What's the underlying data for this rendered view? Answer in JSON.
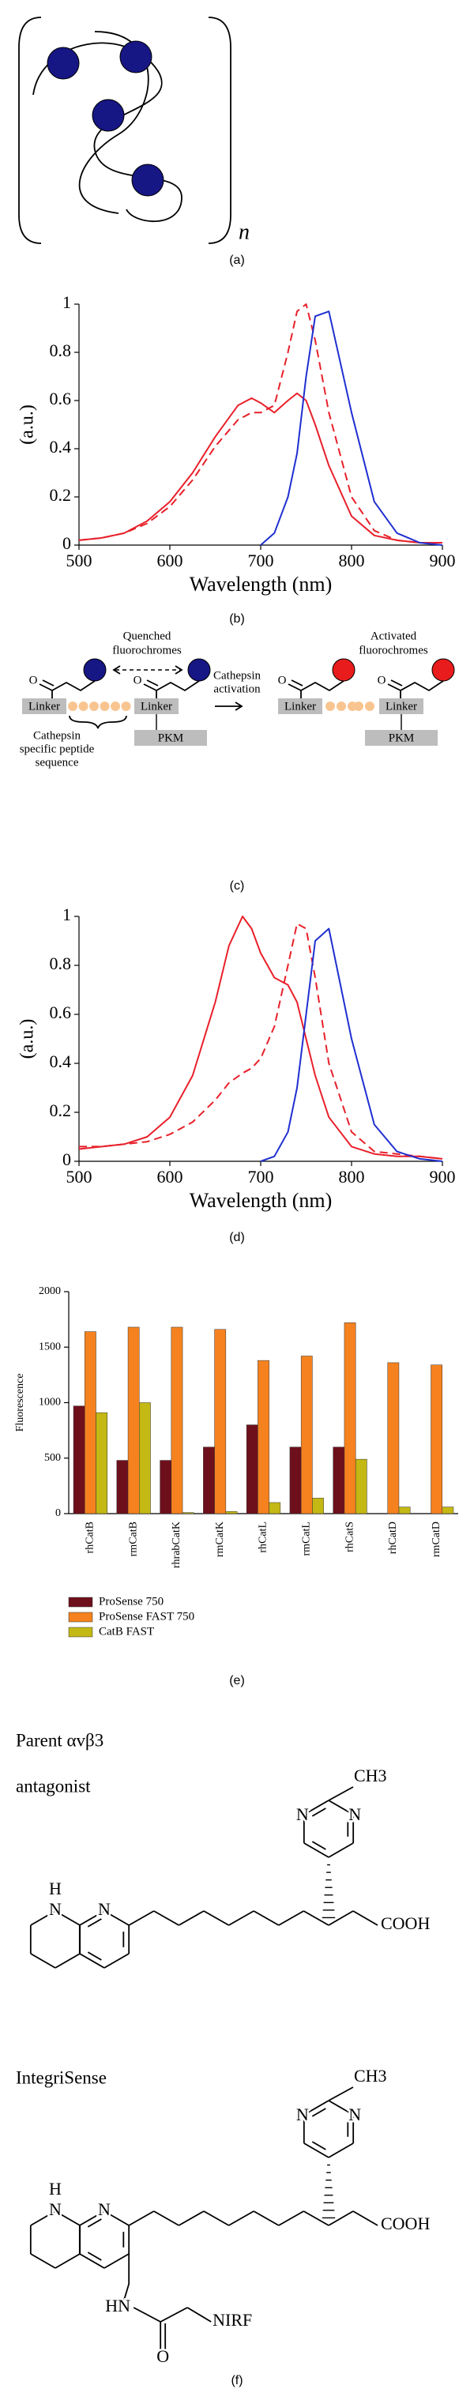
{
  "panel_labels": [
    "(a)",
    "(b)",
    "(c)",
    "(d)",
    "(e)",
    "(f)"
  ],
  "polymer": {
    "subscript": "n"
  },
  "cathepsin_diagram": {
    "quenched": [
      "Quenched",
      "fluorochromes"
    ],
    "activated": [
      "Activated",
      "fluorochromes"
    ],
    "activation": [
      "Cathepsin",
      "activation"
    ],
    "linker": [
      "Linker",
      "Linker",
      "Linker",
      "Linker"
    ],
    "pkm": [
      "PKM",
      "PKM"
    ],
    "peptide": [
      "Cathepsin",
      "specific peptide",
      "sequence"
    ]
  },
  "chart_data": [
    {
      "type": "line",
      "xlabel": "Wavelength (nm)",
      "ylabel": "(a.u.)",
      "xlim": [
        500,
        900
      ],
      "xticks": [
        500,
        600,
        700,
        800,
        900
      ],
      "ylim": [
        0,
        1
      ],
      "yticks": [
        0,
        0.2,
        0.4,
        0.6,
        0.8,
        1
      ],
      "x": [
        500,
        525,
        550,
        575,
        600,
        625,
        650,
        675,
        690,
        700,
        715,
        730,
        740,
        750,
        760,
        775,
        800,
        825,
        850,
        875,
        900
      ],
      "series": [
        {
          "color": "#e8202a",
          "dash": false,
          "values": [
            0.02,
            0.03,
            0.05,
            0.1,
            0.18,
            0.3,
            0.45,
            0.58,
            0.61,
            0.59,
            0.55,
            0.6,
            0.63,
            0.6,
            0.5,
            0.33,
            0.12,
            0.04,
            0.02,
            0.01,
            0.01
          ]
        },
        {
          "color": "#e8202a",
          "dash": true,
          "values": [
            0.02,
            0.03,
            0.05,
            0.09,
            0.16,
            0.27,
            0.41,
            0.52,
            0.55,
            0.55,
            0.58,
            0.8,
            0.97,
            1.0,
            0.85,
            0.55,
            0.2,
            0.06,
            0.02,
            0.01,
            0.01
          ]
        },
        {
          "color": "#1f2fd0",
          "dash": false,
          "values": [
            null,
            null,
            null,
            null,
            null,
            null,
            null,
            null,
            null,
            0.0,
            0.05,
            0.2,
            0.38,
            0.7,
            0.95,
            0.97,
            0.55,
            0.18,
            0.05,
            0.01,
            0.0
          ]
        }
      ]
    },
    {
      "type": "line",
      "xlabel": "Wavelength (nm)",
      "ylabel": "(a.u.)",
      "xlim": [
        500,
        900
      ],
      "xticks": [
        500,
        600,
        700,
        800,
        900
      ],
      "ylim": [
        0,
        1
      ],
      "yticks": [
        0,
        0.2,
        0.4,
        0.6,
        0.8,
        1
      ],
      "x": [
        500,
        525,
        550,
        575,
        600,
        625,
        650,
        665,
        680,
        690,
        700,
        715,
        730,
        740,
        750,
        760,
        775,
        800,
        825,
        850,
        875,
        900
      ],
      "series": [
        {
          "color": "#e8202a",
          "dash": false,
          "values": [
            0.05,
            0.06,
            0.07,
            0.1,
            0.18,
            0.35,
            0.65,
            0.88,
            1.0,
            0.95,
            0.85,
            0.75,
            0.72,
            0.65,
            0.5,
            0.35,
            0.18,
            0.06,
            0.03,
            0.02,
            0.02,
            0.01
          ]
        },
        {
          "color": "#e8202a",
          "dash": true,
          "values": [
            0.06,
            0.06,
            0.07,
            0.08,
            0.11,
            0.16,
            0.25,
            0.32,
            0.36,
            0.38,
            0.42,
            0.55,
            0.8,
            0.97,
            0.95,
            0.75,
            0.4,
            0.12,
            0.04,
            0.03,
            0.02,
            0.01
          ]
        },
        {
          "color": "#1f2fd0",
          "dash": false,
          "values": [
            null,
            null,
            null,
            null,
            null,
            null,
            null,
            null,
            null,
            null,
            0.0,
            0.02,
            0.12,
            0.3,
            0.6,
            0.9,
            0.95,
            0.5,
            0.15,
            0.04,
            0.01,
            0.0
          ]
        }
      ]
    },
    {
      "type": "bar",
      "ylabel": "Fluorescence",
      "categories": [
        "rhCatB",
        "rmCatB",
        "rhrabCatK",
        "rmCatK",
        "rhCatL",
        "rmCatL",
        "rhCatS",
        "rhCatD",
        "rmCatD"
      ],
      "ylim": [
        0,
        2000
      ],
      "yticks": [
        0,
        500,
        1000,
        1500,
        2000
      ],
      "legend": "bottom-left",
      "series": [
        {
          "name": "ProSense 750",
          "color": "#6e0f1c",
          "values": [
            970,
            480,
            480,
            600,
            800,
            600,
            600,
            0,
            0
          ]
        },
        {
          "name": "ProSense FAST 750",
          "color": "#f5821f",
          "values": [
            1640,
            1680,
            1680,
            1660,
            1380,
            1420,
            1720,
            1360,
            1340
          ]
        },
        {
          "name": "CatB FAST",
          "color": "#c4b814",
          "values": [
            910,
            1000,
            10,
            20,
            100,
            140,
            490,
            60,
            60
          ]
        }
      ]
    }
  ],
  "structures": [
    {
      "title": [
        "Parent αvβ3",
        "antagonist"
      ],
      "methyl": "CH3",
      "ring_n": [
        "N",
        "N"
      ],
      "naph": [
        "H",
        "N",
        "N"
      ],
      "acid": "COOH"
    },
    {
      "title": [
        "IntegriSense"
      ],
      "methyl": "CH3",
      "ring_n": [
        "N",
        "N"
      ],
      "naph": [
        "H",
        "N",
        "N"
      ],
      "acid": "COOH",
      "amide": [
        "HN",
        "O",
        "NIRF"
      ]
    }
  ]
}
